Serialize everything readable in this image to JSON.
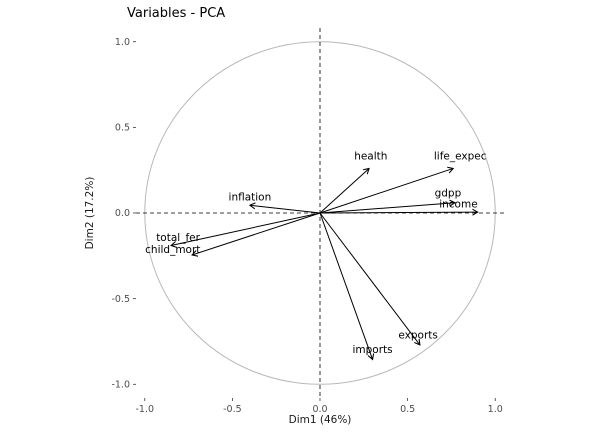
{
  "figure": {
    "title": "Variables - PCA"
  },
  "chart_data": {
    "type": "scatter",
    "subtype": "pca_variable_correlation_circle",
    "title": "Variables - PCA",
    "xlabel": "Dim1 (46%)",
    "ylabel": "Dim2 (17.2%)",
    "xlim": [
      -1.05,
      1.05
    ],
    "ylim": [
      -1.08,
      1.08
    ],
    "xticks": [
      -1.0,
      -0.5,
      0.0,
      0.5,
      1.0
    ],
    "yticks": [
      -1.0,
      -0.5,
      0.0,
      0.5,
      1.0
    ],
    "grid": false,
    "legend": "none",
    "unit_circle": true,
    "zero_lines": "dashed",
    "colors": {
      "arrow": "#000000",
      "circle": "#b8b8b8",
      "tick_text": "#4d4d4d",
      "tick_mark": "#333333",
      "label_text": "#000000"
    },
    "variables": [
      {
        "name": "health",
        "x": 0.28,
        "y": 0.26,
        "label_x": 0.29,
        "label_y": 0.33
      },
      {
        "name": "life_expec",
        "x": 0.76,
        "y": 0.26,
        "label_x": 0.8,
        "label_y": 0.33
      },
      {
        "name": "gdpp",
        "x": 0.77,
        "y": 0.06,
        "label_x": 0.73,
        "label_y": 0.115
      },
      {
        "name": "income",
        "x": 0.9,
        "y": 0.005,
        "label_x": 0.79,
        "label_y": 0.05
      },
      {
        "name": "inflation",
        "x": -0.4,
        "y": 0.045,
        "label_x": -0.4,
        "label_y": 0.09
      },
      {
        "name": "total_fer",
        "x": -0.85,
        "y": -0.19,
        "label_x": -0.81,
        "label_y": -0.145
      },
      {
        "name": "child_mort",
        "x": -0.73,
        "y": -0.245,
        "label_x": -0.84,
        "label_y": -0.215
      },
      {
        "name": "exports",
        "x": 0.57,
        "y": -0.77,
        "label_x": 0.56,
        "label_y": -0.715
      },
      {
        "name": "imports",
        "x": 0.3,
        "y": -0.855,
        "label_x": 0.3,
        "label_y": -0.8
      }
    ]
  }
}
